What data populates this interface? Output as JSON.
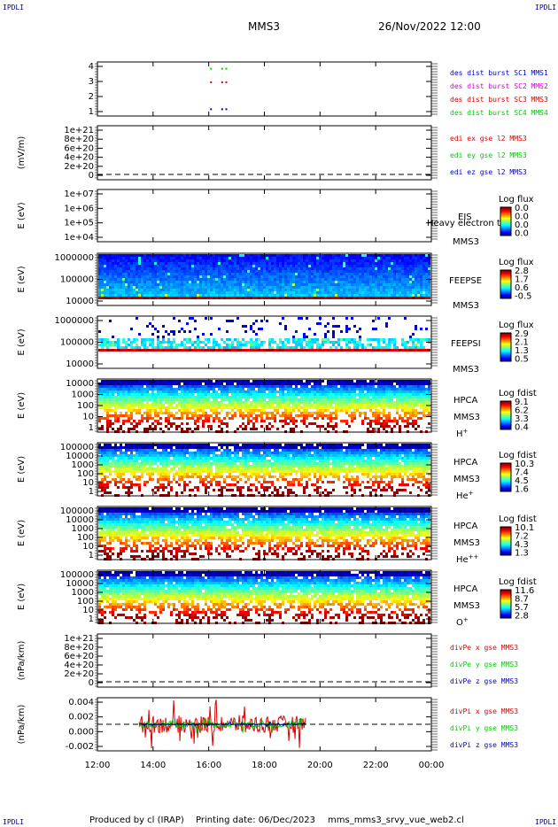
{
  "corners": {
    "tl": "IPDLI",
    "tr": "IPDLI",
    "bl": "IPDLI",
    "br": "IPDLI"
  },
  "header": {
    "spacecraft": "MMS3",
    "datetime": "26/Nov/2022 12:00"
  },
  "footer": {
    "produced": "Produced by cl (IRAP)",
    "printing": "Printing date: 06/Dec/2023",
    "file": "mms_mms3_srvy_vue_web2.cl"
  },
  "colors": {
    "red": "#dd0000",
    "green": "#00cc00",
    "blue": "#0000cc",
    "magenta": "#dd00dd",
    "frame": "#000000"
  },
  "chart_data": [
    {
      "type": "scatter",
      "panel": "burst",
      "yticks": [
        "4",
        "3",
        "2",
        "1"
      ],
      "ylim": [
        0.5,
        4.5
      ],
      "series": [
        {
          "name": "des dist burst SC1 MMS1",
          "color": "#0000cc",
          "y": 1,
          "x": [
            16.05,
            16.45,
            16.6
          ]
        },
        {
          "name": "des dist burst SC2 MMS2",
          "color": "#dd00dd",
          "y": 2,
          "x": []
        },
        {
          "name": "des dist burst SC3 MMS3",
          "color": "#dd0000",
          "y": 3,
          "x": [
            16.05,
            16.45,
            16.6
          ]
        },
        {
          "name": "des dist burst SC4 MMS4",
          "color": "#00cc00",
          "y": 4,
          "x": [
            16.05,
            16.45,
            16.6
          ]
        }
      ]
    },
    {
      "type": "line",
      "panel": "edi",
      "ylabel": "(mV/m)",
      "yticks": [
        "1e+21",
        "8e+20",
        "6e+20",
        "4e+20",
        "2e+20",
        "0"
      ],
      "ylim": [
        0,
        1e+21
      ],
      "series": [
        {
          "name": "edi ex gse l2 MMS3",
          "color": "#dd0000",
          "values": []
        },
        {
          "name": "edi ey gse l2 MMS3",
          "color": "#00cc00",
          "values": []
        },
        {
          "name": "edi ez gse l2 MMS3",
          "color": "#0000cc",
          "values": []
        }
      ]
    },
    {
      "type": "heatmap",
      "panel": "eis",
      "ylabel": "E (eV)",
      "yticks": [
        "1e+07",
        "1e+06",
        "1e+05",
        "1e+04"
      ],
      "instrument": "EIS",
      "note": "Heavy electron to",
      "sc": "MMS3",
      "colorbar": {
        "title": "Log flux",
        "labels": [
          "0.0",
          "0.0",
          "0.0",
          "0.0"
        ]
      }
    },
    {
      "type": "heatmap",
      "panel": "feepse",
      "ylabel": "E (eV)",
      "yticks": [
        "1000000",
        "100000",
        "10000"
      ],
      "instrument": "FEEPSE",
      "sc": "MMS3",
      "colorbar": {
        "title": "Log flux",
        "labels": [
          "2.8",
          "1.7",
          "0.6",
          "-0.5"
        ]
      }
    },
    {
      "type": "heatmap",
      "panel": "feepsi",
      "ylabel": "E (eV)",
      "yticks": [
        "1000000",
        "100000",
        "10000"
      ],
      "instrument": "FEEPSI",
      "sc": "MMS3",
      "colorbar": {
        "title": "Log flux",
        "labels": [
          "2.9",
          "2.1",
          "1.3",
          "0.5"
        ]
      }
    },
    {
      "type": "heatmap",
      "panel": "hpca-h",
      "ylabel": "E (eV)",
      "yticks": [
        "10000",
        "1000",
        "100",
        "10",
        "1"
      ],
      "instrument": "HPCA",
      "sc": "MMS3",
      "species": "H",
      "charge": "+",
      "colorbar": {
        "title": "Log fdist",
        "labels": [
          "9.1",
          "6.2",
          "3.3",
          "0.4"
        ]
      }
    },
    {
      "type": "heatmap",
      "panel": "hpca-he",
      "ylabel": "E (eV)",
      "yticks": [
        "100000",
        "10000",
        "1000",
        "100",
        "10",
        "1"
      ],
      "instrument": "HPCA",
      "sc": "MMS3",
      "species": "He",
      "charge": "+",
      "colorbar": {
        "title": "Log fdist",
        "labels": [
          "10.3",
          "7.4",
          "4.5",
          "1.6"
        ]
      }
    },
    {
      "type": "heatmap",
      "panel": "hpca-hepp",
      "ylabel": "E (eV)",
      "yticks": [
        "100000",
        "10000",
        "1000",
        "100",
        "10",
        "1"
      ],
      "instrument": "HPCA",
      "sc": "MMS3",
      "species": "He",
      "charge": "++",
      "colorbar": {
        "title": "Log fdist",
        "labels": [
          "10.1",
          "7.2",
          "4.3",
          "1.3"
        ]
      }
    },
    {
      "type": "heatmap",
      "panel": "hpca-o",
      "ylabel": "E (eV)",
      "yticks": [
        "100000",
        "10000",
        "1000",
        "100",
        "10",
        "1"
      ],
      "instrument": "HPCA",
      "sc": "MMS3",
      "species": "O",
      "charge": "+",
      "colorbar": {
        "title": "Log fdist",
        "labels": [
          "11.6",
          "8.7",
          "5.7",
          "2.8"
        ]
      }
    },
    {
      "type": "line",
      "panel": "divpe",
      "ylabel": "(nPa/km)",
      "yticks": [
        "1e+21",
        "8e+20",
        "6e+20",
        "4e+20",
        "2e+20",
        "0"
      ],
      "ylim": [
        0,
        1e+21
      ],
      "series": [
        {
          "name": "divPe x gse MMS3",
          "color": "#dd0000",
          "values": []
        },
        {
          "name": "divPe y gse MMS3",
          "color": "#00cc00",
          "values": []
        },
        {
          "name": "divPe z gse MMS3",
          "color": "#0000cc",
          "values": []
        }
      ]
    },
    {
      "type": "line",
      "panel": "divpi",
      "ylabel": "(nPa/km)",
      "yticks": [
        "0.004",
        "0.002",
        "0.000",
        "-0.002"
      ],
      "ylim": [
        -0.0043,
        0.0043
      ],
      "x_range": [
        13.5,
        19.5
      ],
      "series": [
        {
          "name": "divPi x gse MMS3",
          "color": "#dd0000",
          "amplitude": 0.004
        },
        {
          "name": "divPi y gse MMS3",
          "color": "#00cc00",
          "amplitude": 0.0015
        },
        {
          "name": "divPi z gse MMS3",
          "color": "#0000cc",
          "amplitude": 0.0004
        }
      ]
    }
  ],
  "xaxis": {
    "ticks": [
      "12:00",
      "14:00",
      "16:00",
      "18:00",
      "20:00",
      "22:00",
      "00:00"
    ],
    "range_hours": [
      12,
      24
    ]
  }
}
